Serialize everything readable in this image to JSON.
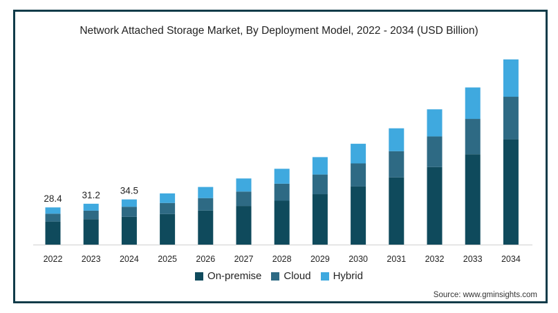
{
  "chart_data": {
    "type": "bar",
    "stacked": true,
    "title": "Network Attached Storage Market, By Deployment Model, 2022 - 2034 (USD Billion)",
    "categories": [
      "2022",
      "2023",
      "2024",
      "2025",
      "2026",
      "2027",
      "2028",
      "2029",
      "2030",
      "2031",
      "2032",
      "2033",
      "2034"
    ],
    "series": [
      {
        "name": "On-premise",
        "color": "#0f4a5c",
        "values": [
          17.6,
          19.4,
          21.2,
          23.3,
          26.0,
          29.5,
          33.5,
          38.5,
          44.5,
          51.3,
          59.2,
          69.0,
          80.4
        ]
      },
      {
        "name": "Cloud",
        "color": "#2e6a84",
        "values": [
          6.0,
          6.5,
          7.7,
          8.5,
          9.5,
          11.0,
          13.0,
          15.0,
          17.5,
          20.0,
          23.4,
          27.0,
          32.5
        ]
      },
      {
        "name": "Hybrid",
        "color": "#3fa9df",
        "values": [
          4.8,
          5.3,
          5.6,
          7.3,
          8.5,
          10.0,
          11.4,
          13.3,
          15.0,
          17.5,
          20.7,
          24.0,
          28.5
        ]
      }
    ],
    "data_labels": {
      "2022": "28.4",
      "2023": "31.2",
      "2024": "34.5"
    },
    "legend_position": "bottom",
    "grid": false
  },
  "source": "Source: www.gminsights.com"
}
